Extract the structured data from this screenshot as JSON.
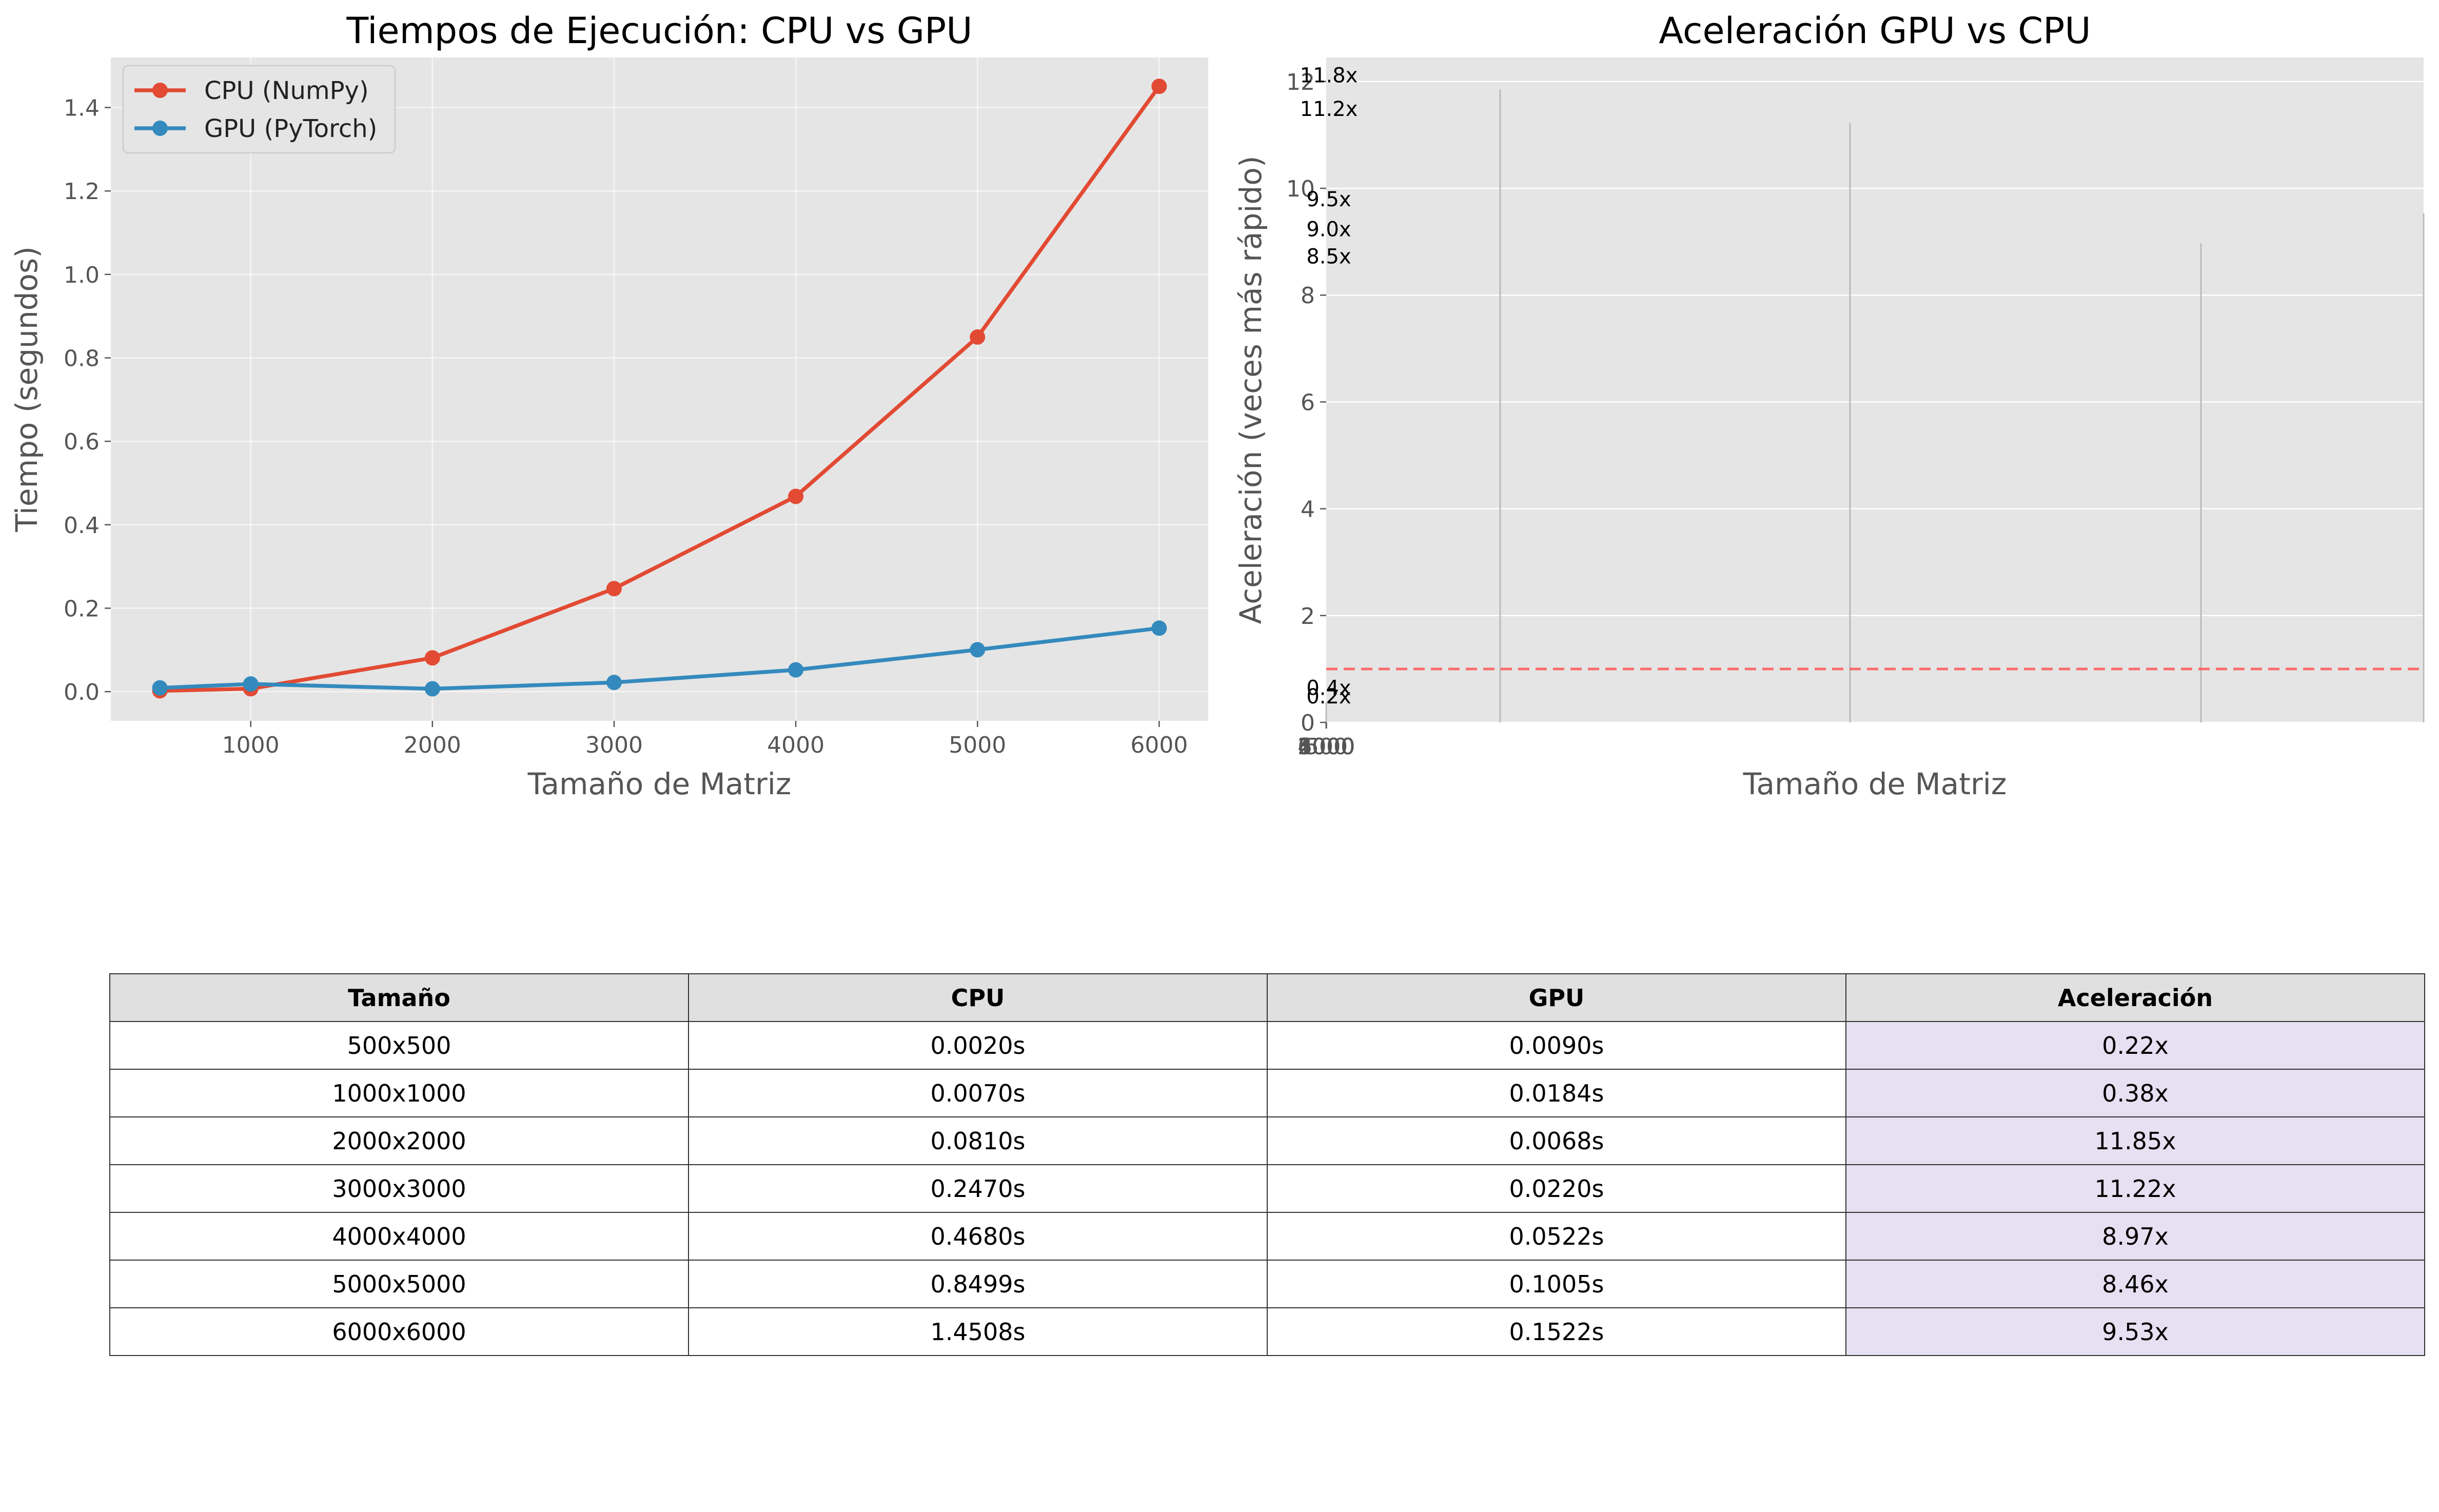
{
  "colors": {
    "cpu": "#e24a33",
    "gpu": "#348abd",
    "plot_bg": "#e5e5e5",
    "grid": "#ffffff",
    "reference_line": "#ff4d4d",
    "table_header_bg": "#e0e0e0",
    "table_accent_bg": "#e6e0f2"
  },
  "chart_data": [
    {
      "type": "line",
      "title": "Tiempos de Ejecución: CPU vs GPU",
      "xlabel": "Tamaño de Matriz",
      "ylabel": "Tiempo (segundos)",
      "x": [
        500,
        1000,
        2000,
        3000,
        4000,
        5000,
        6000
      ],
      "xticks": [
        1000,
        2000,
        3000,
        4000,
        5000,
        6000
      ],
      "yticks": [
        0.0,
        0.2,
        0.4,
        0.6,
        0.8,
        1.0,
        1.2,
        1.4
      ],
      "xtick_labels": [
        "1000",
        "2000",
        "3000",
        "4000",
        "5000",
        "6000"
      ],
      "ytick_labels": [
        "0.0",
        "0.2",
        "0.4",
        "0.6",
        "0.8",
        "1.0",
        "1.2",
        "1.4"
      ],
      "xlim": [
        230,
        6270
      ],
      "ylim": [
        -0.07,
        1.52
      ],
      "grid": true,
      "legend_position": "top-left",
      "series": [
        {
          "name": "CPU (NumPy)",
          "values": [
            0.002,
            0.007,
            0.081,
            0.247,
            0.468,
            0.8499,
            1.4508
          ]
        },
        {
          "name": "GPU (PyTorch)",
          "values": [
            0.009,
            0.0184,
            0.0068,
            0.022,
            0.0522,
            0.1005,
            0.1522
          ]
        }
      ]
    },
    {
      "type": "bar",
      "title": "Aceleración GPU vs CPU",
      "xlabel": "Tamaño de Matriz",
      "ylabel": "Aceleración (veces más rápido)",
      "x": [
        500,
        1000,
        2000,
        3000,
        4000,
        5000,
        6000
      ],
      "values": [
        0.22,
        0.38,
        11.85,
        11.22,
        8.97,
        8.46,
        9.53
      ],
      "value_labels": [
        "0.2x",
        "0.4x",
        "11.8x",
        "11.2x",
        "9.0x",
        "8.5x",
        "9.5x"
      ],
      "bar_labels_x": [
        500,
        1000,
        2000,
        3000,
        4000,
        5000,
        6000
      ],
      "xtick_labels": [
        "500",
        "1000",
        "2000",
        "3000",
        "4000",
        "5000",
        "6000"
      ],
      "yticks": [
        0,
        2,
        4,
        6,
        8,
        10,
        12
      ],
      "ytick_labels": [
        "0",
        "2",
        "4",
        "6",
        "8",
        "10",
        "12"
      ],
      "ylim": [
        0,
        12.45
      ],
      "reference_line": 1.0,
      "grid": true
    }
  ],
  "table": {
    "headers": [
      "Tamaño",
      "CPU",
      "GPU",
      "Aceleración"
    ],
    "rows": [
      [
        "500x500",
        "0.0020s",
        "0.0090s",
        "0.22x"
      ],
      [
        "1000x1000",
        "0.0070s",
        "0.0184s",
        "0.38x"
      ],
      [
        "2000x2000",
        "0.0810s",
        "0.0068s",
        "11.85x"
      ],
      [
        "3000x3000",
        "0.2470s",
        "0.0220s",
        "11.22x"
      ],
      [
        "4000x4000",
        "0.4680s",
        "0.0522s",
        "8.97x"
      ],
      [
        "5000x5000",
        "0.8499s",
        "0.1005s",
        "8.46x"
      ],
      [
        "6000x6000",
        "1.4508s",
        "0.1522s",
        "9.53x"
      ]
    ]
  }
}
